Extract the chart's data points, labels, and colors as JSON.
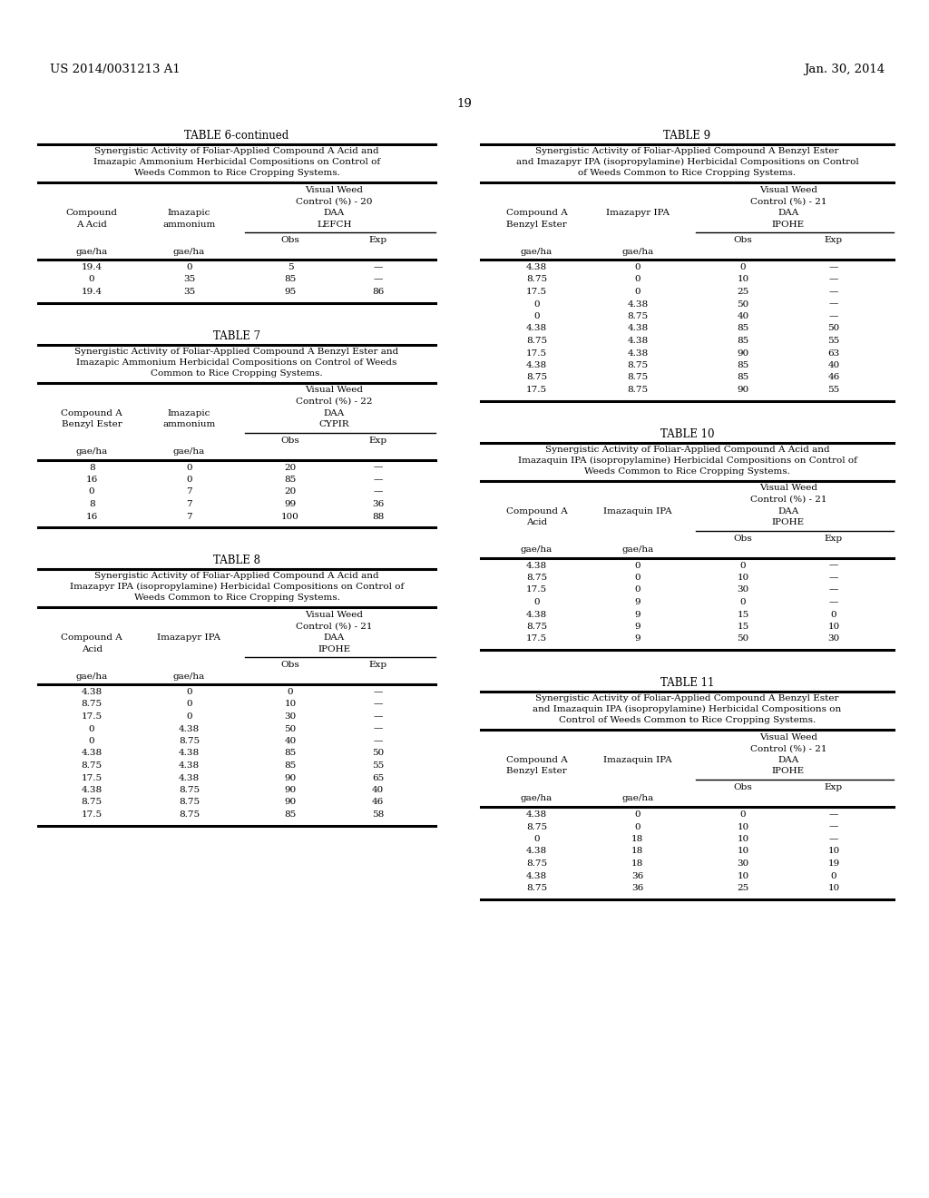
{
  "bg_color": "#ffffff",
  "header_left": "US 2014/0031213 A1",
  "header_right": "Jan. 30, 2014",
  "page_num": "19",
  "tables": {
    "table6c": {
      "title": "TABLE 6-continued",
      "caption_lines": [
        "Synergistic Activity of Foliar-Applied Compound A Acid and",
        "Imazapic Ammonium Herbicidal Compositions on Control of",
        "Weeds Common to Rice Cropping Systems."
      ],
      "col1_head": [
        "Compound",
        "A Acid"
      ],
      "col2_head": [
        "Imazapic",
        "ammonium"
      ],
      "vwc_line1": "Visual Weed",
      "vwc_line2": "Control (%) - 20",
      "daa": "DAA",
      "weed": "LEFCH",
      "col34_head": [
        "Obs",
        "Exp"
      ],
      "units": [
        "gae/ha",
        "gae/ha"
      ],
      "rows": [
        [
          "19.4",
          "0",
          "5",
          "—"
        ],
        [
          "0",
          "35",
          "85",
          "—"
        ],
        [
          "19.4",
          "35",
          "95",
          "86"
        ]
      ]
    },
    "table7": {
      "title": "TABLE 7",
      "caption_lines": [
        "Synergistic Activity of Foliar-Applied Compound A Benzyl Ester and",
        "Imazapic Ammonium Herbicidal Compositions on Control of Weeds",
        "Common to Rice Cropping Systems."
      ],
      "col1_head": [
        "Compound A",
        "Benzyl Ester"
      ],
      "col2_head": [
        "Imazapic",
        "ammonium"
      ],
      "vwc_line1": "Visual Weed",
      "vwc_line2": "Control (%) - 22",
      "daa": "DAA",
      "weed": "CYPIR",
      "col34_head": [
        "Obs",
        "Exp"
      ],
      "units": [
        "gae/ha",
        "gae/ha"
      ],
      "rows": [
        [
          "8",
          "0",
          "20",
          "—"
        ],
        [
          "16",
          "0",
          "85",
          "—"
        ],
        [
          "0",
          "7",
          "20",
          "—"
        ],
        [
          "8",
          "7",
          "99",
          "36"
        ],
        [
          "16",
          "7",
          "100",
          "88"
        ]
      ]
    },
    "table8": {
      "title": "TABLE 8",
      "caption_lines": [
        "Synergistic Activity of Foliar-Applied Compound A Acid and",
        "Imazapyr IPA (isopropylamine) Herbicidal Compositions on Control of",
        "Weeds Common to Rice Cropping Systems."
      ],
      "col1_head": [
        "Compound A",
        "Acid"
      ],
      "col2_head": [
        "Imazapyr IPA",
        ""
      ],
      "vwc_line1": "Visual Weed",
      "vwc_line2": "Control (%) - 21",
      "daa": "DAA",
      "weed": "IPOHE",
      "col34_head": [
        "Obs",
        "Exp"
      ],
      "units": [
        "gae/ha",
        "gae/ha"
      ],
      "rows": [
        [
          "4.38",
          "0",
          "0",
          "—"
        ],
        [
          "8.75",
          "0",
          "10",
          "—"
        ],
        [
          "17.5",
          "0",
          "30",
          "—"
        ],
        [
          "0",
          "4.38",
          "50",
          "—"
        ],
        [
          "0",
          "8.75",
          "40",
          "—"
        ],
        [
          "4.38",
          "4.38",
          "85",
          "50"
        ],
        [
          "8.75",
          "4.38",
          "85",
          "55"
        ],
        [
          "17.5",
          "4.38",
          "90",
          "65"
        ],
        [
          "4.38",
          "8.75",
          "90",
          "40"
        ],
        [
          "8.75",
          "8.75",
          "90",
          "46"
        ],
        [
          "17.5",
          "8.75",
          "85",
          "58"
        ]
      ]
    },
    "table9": {
      "title": "TABLE 9",
      "caption_lines": [
        "Synergistic Activity of Foliar-Applied Compound A Benzyl Ester",
        "and Imazapyr IPA (isopropylamine) Herbicidal Compositions on Control",
        "of Weeds Common to Rice Cropping Systems."
      ],
      "col1_head": [
        "Compound A",
        "Benzyl Ester"
      ],
      "col2_head": [
        "Imazapyr IPA",
        ""
      ],
      "vwc_line1": "Visual Weed",
      "vwc_line2": "Control (%) - 21",
      "daa": "DAA",
      "weed": "IPOHE",
      "col34_head": [
        "Obs",
        "Exp"
      ],
      "units": [
        "gae/ha",
        "gae/ha"
      ],
      "rows": [
        [
          "4.38",
          "0",
          "0",
          "—"
        ],
        [
          "8.75",
          "0",
          "10",
          "—"
        ],
        [
          "17.5",
          "0",
          "25",
          "—"
        ],
        [
          "0",
          "4.38",
          "50",
          "—"
        ],
        [
          "0",
          "8.75",
          "40",
          "—"
        ],
        [
          "4.38",
          "4.38",
          "85",
          "50"
        ],
        [
          "8.75",
          "4.38",
          "85",
          "55"
        ],
        [
          "17.5",
          "4.38",
          "90",
          "63"
        ],
        [
          "4.38",
          "8.75",
          "85",
          "40"
        ],
        [
          "8.75",
          "8.75",
          "85",
          "46"
        ],
        [
          "17.5",
          "8.75",
          "90",
          "55"
        ]
      ]
    },
    "table10": {
      "title": "TABLE 10",
      "caption_lines": [
        "Synergistic Activity of Foliar-Applied Compound A Acid and",
        "Imazaquin IPA (isopropylamine) Herbicidal Compositions on Control of",
        "Weeds Common to Rice Cropping Systems."
      ],
      "col1_head": [
        "Compound A",
        "Acid"
      ],
      "col2_head": [
        "Imazaquin IPA",
        ""
      ],
      "vwc_line1": "Visual Weed",
      "vwc_line2": "Control (%) - 21",
      "daa": "DAA",
      "weed": "IPOHE",
      "col34_head": [
        "Obs",
        "Exp"
      ],
      "units": [
        "gae/ha",
        "gae/ha"
      ],
      "rows": [
        [
          "4.38",
          "0",
          "0",
          "—"
        ],
        [
          "8.75",
          "0",
          "10",
          "—"
        ],
        [
          "17.5",
          "0",
          "30",
          "—"
        ],
        [
          "0",
          "9",
          "0",
          "—"
        ],
        [
          "4.38",
          "9",
          "15",
          "0"
        ],
        [
          "8.75",
          "9",
          "15",
          "10"
        ],
        [
          "17.5",
          "9",
          "50",
          "30"
        ]
      ]
    },
    "table11": {
      "title": "TABLE 11",
      "caption_lines": [
        "Synergistic Activity of Foliar-Applied Compound A Benzyl Ester",
        "and Imazaquin IPA (isopropylamine) Herbicidal Compositions on",
        "Control of Weeds Common to Rice Cropping Systems."
      ],
      "col1_head": [
        "Compound A",
        "Benzyl Ester"
      ],
      "col2_head": [
        "Imazaquin IPA",
        ""
      ],
      "vwc_line1": "Visual Weed",
      "vwc_line2": "Control (%) - 21",
      "daa": "DAA",
      "weed": "IPOHE",
      "col34_head": [
        "Obs",
        "Exp"
      ],
      "units": [
        "gae/ha",
        "gae/ha"
      ],
      "rows": [
        [
          "4.38",
          "0",
          "0",
          "—"
        ],
        [
          "8.75",
          "0",
          "10",
          "—"
        ],
        [
          "0",
          "18",
          "10",
          "—"
        ],
        [
          "4.38",
          "18",
          "10",
          "10"
        ],
        [
          "8.75",
          "18",
          "30",
          "19"
        ],
        [
          "4.38",
          "36",
          "10",
          "0"
        ],
        [
          "8.75",
          "36",
          "25",
          "10"
        ]
      ]
    }
  }
}
